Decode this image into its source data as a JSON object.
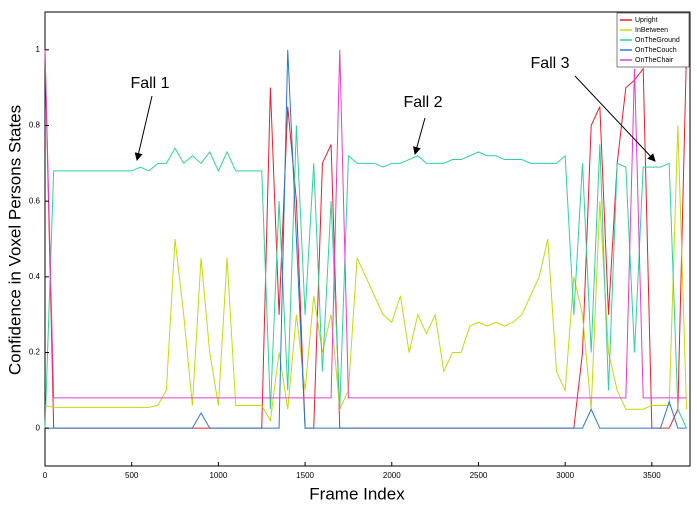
{
  "chart_data": {
    "type": "line",
    "x_label": "Frame Index",
    "y_label": "Confidence in Voxel Persons States",
    "annotations": [
      "Fall 1",
      "Fall 2",
      "Fall 3"
    ],
    "x": [
      0,
      50,
      100,
      150,
      200,
      250,
      300,
      350,
      400,
      450,
      500,
      550,
      600,
      650,
      700,
      750,
      800,
      850,
      900,
      950,
      1000,
      1050,
      1100,
      1150,
      1200,
      1250,
      1300,
      1350,
      1400,
      1450,
      1500,
      1550,
      1600,
      1650,
      1700,
      1750,
      1800,
      1850,
      1900,
      1950,
      2000,
      2050,
      2100,
      2150,
      2200,
      2250,
      2300,
      2350,
      2400,
      2450,
      2500,
      2550,
      2600,
      2650,
      2700,
      2750,
      2800,
      2850,
      2900,
      2950,
      3000,
      3050,
      3100,
      3150,
      3200,
      3250,
      3300,
      3350,
      3400,
      3450,
      3500,
      3550,
      3600,
      3650,
      3700
    ],
    "series": [
      {
        "name": "Upright",
        "color": "#e8202a",
        "values": [
          1,
          0,
          0,
          0,
          0,
          0,
          0,
          0,
          0,
          0,
          0,
          0,
          0,
          0,
          0,
          0,
          0,
          0,
          0,
          0,
          0,
          0,
          0,
          0,
          0,
          0,
          0.9,
          0.3,
          0.85,
          0.6,
          0,
          0,
          0.7,
          0.75,
          0,
          0,
          0,
          0,
          0,
          0,
          0,
          0,
          0,
          0,
          0,
          0,
          0,
          0,
          0,
          0,
          0,
          0,
          0,
          0,
          0,
          0,
          0,
          0,
          0,
          0,
          0,
          0,
          0.2,
          0.8,
          0.85,
          0.3,
          0.7,
          0.9,
          0.92,
          0.95,
          0,
          0,
          0,
          0.05,
          1
        ]
      },
      {
        "name": "InBetween",
        "color": "#c4da10",
        "values": [
          0.06,
          0.055,
          0.055,
          0.055,
          0.055,
          0.055,
          0.055,
          0.055,
          0.055,
          0.055,
          0.055,
          0.055,
          0.055,
          0.06,
          0.1,
          0.5,
          0.3,
          0.06,
          0.45,
          0.2,
          0.06,
          0.45,
          0.06,
          0.06,
          0.06,
          0.06,
          0.02,
          0.2,
          0.05,
          0.3,
          0.1,
          0.35,
          0.2,
          0.3,
          0.05,
          0.1,
          0.45,
          0.4,
          0.35,
          0.3,
          0.28,
          0.35,
          0.2,
          0.3,
          0.25,
          0.3,
          0.15,
          0.2,
          0.2,
          0.27,
          0.28,
          0.27,
          0.28,
          0.27,
          0.28,
          0.3,
          0.35,
          0.4,
          0.5,
          0.15,
          0.1,
          0.4,
          0.3,
          0.05,
          0.6,
          0.2,
          0.1,
          0.05,
          0.05,
          0.05,
          0.06,
          0.06,
          0.06,
          0.8,
          0.05
        ]
      },
      {
        "name": "OnTheGround",
        "color": "#2fd39a",
        "values": [
          0,
          0.68,
          0.68,
          0.68,
          0.68,
          0.68,
          0.68,
          0.68,
          0.68,
          0.68,
          0.68,
          0.69,
          0.68,
          0.7,
          0.7,
          0.74,
          0.7,
          0.72,
          0.7,
          0.73,
          0.68,
          0.73,
          0.68,
          0.68,
          0.68,
          0.68,
          0.05,
          0.6,
          0.1,
          0.8,
          0.3,
          0.7,
          0.15,
          0.6,
          0.05,
          0.72,
          0.7,
          0.7,
          0.7,
          0.69,
          0.7,
          0.7,
          0.71,
          0.72,
          0.7,
          0.7,
          0.7,
          0.71,
          0.71,
          0.72,
          0.73,
          0.72,
          0.72,
          0.71,
          0.71,
          0.71,
          0.7,
          0.7,
          0.7,
          0.7,
          0.72,
          0.3,
          0.7,
          0.2,
          0.75,
          0.1,
          0.7,
          0.69,
          0.2,
          0.69,
          0.69,
          0.69,
          0.7,
          0.05,
          0
        ]
      },
      {
        "name": "OnTheCouch",
        "color": "#2878d0",
        "values": [
          0,
          0,
          0,
          0,
          0,
          0,
          0,
          0,
          0,
          0,
          0,
          0,
          0,
          0,
          0,
          0,
          0,
          0,
          0.04,
          0,
          0,
          0,
          0,
          0,
          0,
          0,
          0,
          0,
          1,
          0.5,
          0,
          0,
          0,
          0,
          0,
          0,
          0,
          0,
          0,
          0,
          0,
          0,
          0,
          0,
          0,
          0,
          0,
          0,
          0,
          0,
          0,
          0,
          0,
          0,
          0,
          0,
          0,
          0,
          0,
          0,
          0,
          0,
          0,
          0.05,
          0,
          0,
          0,
          0,
          0,
          0,
          0,
          0,
          0.07,
          0,
          0
        ]
      },
      {
        "name": "OnTheChair",
        "color": "#e23ed6",
        "values": [
          1,
          0.08,
          0.08,
          0.08,
          0.08,
          0.08,
          0.08,
          0.08,
          0.08,
          0.08,
          0.08,
          0.08,
          0.08,
          0.08,
          0.08,
          0.08,
          0.08,
          0.08,
          0.08,
          0.08,
          0.08,
          0.08,
          0.08,
          0.08,
          0.08,
          0.08,
          0.08,
          0.08,
          0.08,
          0.08,
          0.08,
          0.08,
          0.08,
          0.08,
          1,
          0.08,
          0.08,
          0.08,
          0.08,
          0.08,
          0.08,
          0.08,
          0.08,
          0.08,
          0.08,
          0.08,
          0.08,
          0.08,
          0.08,
          0.08,
          0.08,
          0.08,
          0.08,
          0.08,
          0.08,
          0.08,
          0.08,
          0.08,
          0.08,
          0.08,
          0.08,
          0.08,
          0.08,
          0.08,
          0.08,
          0.08,
          0.08,
          0.08,
          0.95,
          0.08,
          0.08,
          0.08,
          0.08,
          0.08,
          0.08
        ]
      }
    ],
    "xlim": [
      0,
      3720
    ],
    "ylim": [
      -0.1,
      1.1
    ],
    "xticks": [
      0,
      500,
      1000,
      1500,
      2000,
      2500,
      3000,
      3500
    ],
    "yticks": [
      0,
      0.2,
      0.4,
      0.6,
      0.8,
      1
    ],
    "legend": "upper right"
  }
}
